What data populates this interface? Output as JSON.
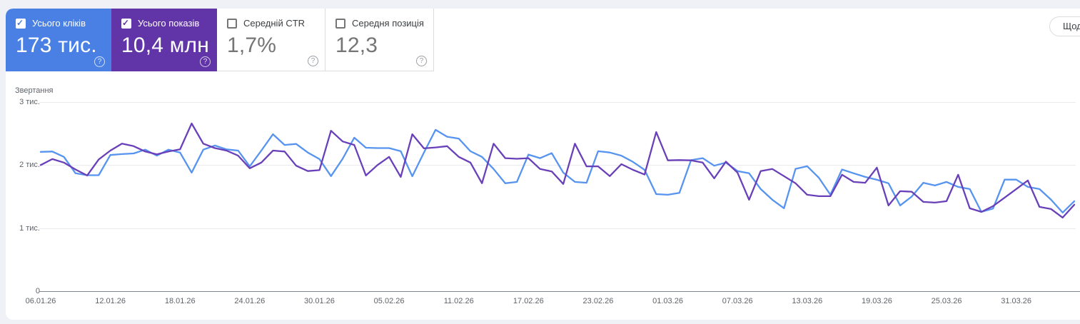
{
  "page": {
    "background": "#eff1f6",
    "panel_background": "#ffffff"
  },
  "toolbar": {
    "granularity_button_label": "Щод"
  },
  "metric_cards": [
    {
      "label": "Усього кліків",
      "value": "173 тис.",
      "checked": true,
      "bg": "#4a80e4",
      "fg": "#ffffff",
      "label_color": "#ffffff"
    },
    {
      "label": "Усього показів",
      "value": "10,4 млн",
      "checked": true,
      "bg": "#6134a8",
      "fg": "#ffffff",
      "label_color": "#ffffff"
    },
    {
      "label": "Середній CTR",
      "value": "1,7%",
      "checked": false,
      "bg": "#ffffff",
      "fg": "#757575",
      "label_color": "#3c4043"
    },
    {
      "label": "Середня позиція",
      "value": "12,3",
      "checked": false,
      "bg": "#ffffff",
      "fg": "#757575",
      "label_color": "#3c4043"
    }
  ],
  "chart_data": {
    "type": "line",
    "title": "",
    "ylabel": "Звертання",
    "xlabel": "",
    "ylim": [
      0,
      3000
    ],
    "grid": true,
    "y_ticks": [
      {
        "value": 3000,
        "label": "3 тис."
      },
      {
        "value": 2000,
        "label": "2 тис."
      },
      {
        "value": 1000,
        "label": "1 тис."
      },
      {
        "value": 0,
        "label": "0"
      }
    ],
    "x_ticks": [
      {
        "day": 0,
        "label": "06.01.26"
      },
      {
        "day": 6,
        "label": "12.01.26"
      },
      {
        "day": 12,
        "label": "18.01.26"
      },
      {
        "day": 18,
        "label": "24.01.26"
      },
      {
        "day": 24,
        "label": "30.01.26"
      },
      {
        "day": 30,
        "label": "05.02.26"
      },
      {
        "day": 36,
        "label": "11.02.26"
      },
      {
        "day": 42,
        "label": "17.02.26"
      },
      {
        "day": 48,
        "label": "23.02.26"
      },
      {
        "day": 54,
        "label": "01.03.26"
      },
      {
        "day": 60,
        "label": "07.03.26"
      },
      {
        "day": 66,
        "label": "13.03.26"
      },
      {
        "day": 72,
        "label": "19.03.26"
      },
      {
        "day": 78,
        "label": "25.03.26"
      },
      {
        "day": 84,
        "label": "31.03.26"
      }
    ],
    "series": [
      {
        "name": "Усього кліків",
        "color": "#5694f0",
        "values": [
          2210,
          2215,
          2130,
          1870,
          1840,
          1840,
          2160,
          2175,
          2185,
          2245,
          2150,
          2245,
          2200,
          1880,
          2245,
          2310,
          2250,
          2230,
          1980,
          2230,
          2490,
          2320,
          2335,
          2200,
          2095,
          1825,
          2100,
          2435,
          2275,
          2270,
          2270,
          2220,
          1823,
          2200,
          2560,
          2450,
          2420,
          2220,
          2130,
          1938,
          1712,
          1733,
          2167,
          2110,
          2190,
          1880,
          1733,
          1720,
          2220,
          2200,
          2150,
          2050,
          1925,
          1540,
          1530,
          1560,
          2078,
          2110,
          1990,
          2040,
          1905,
          1870,
          1620,
          1450,
          1315,
          1940,
          1982,
          1800,
          1530,
          1930,
          1870,
          1813,
          1767,
          1712,
          1360,
          1500,
          1720,
          1677,
          1733,
          1654,
          1620,
          1258,
          1310,
          1770,
          1770,
          1654,
          1620,
          1450,
          1246,
          1427
        ]
      },
      {
        "name": "Усього показів",
        "color": "#6940b9",
        "values": [
          2000,
          2095,
          2040,
          1930,
          1835,
          2090,
          2230,
          2340,
          2300,
          2215,
          2170,
          2215,
          2250,
          2660,
          2340,
          2270,
          2230,
          2150,
          1950,
          2040,
          2230,
          2215,
          1990,
          1905,
          1920,
          2545,
          2375,
          2320,
          1835,
          2000,
          2130,
          1813,
          2490,
          2265,
          2280,
          2300,
          2130,
          2040,
          1712,
          2340,
          2110,
          2100,
          2110,
          1938,
          1900,
          1700,
          2340,
          1980,
          1980,
          1825,
          2015,
          1925,
          1850,
          2525,
          2075,
          2080,
          2075,
          2040,
          1790,
          2055,
          1880,
          1450,
          1905,
          1938,
          1825,
          1712,
          1530,
          1507,
          1507,
          1847,
          1733,
          1720,
          1960,
          1360,
          1586,
          1578,
          1416,
          1405,
          1428,
          1847,
          1314,
          1258,
          1348,
          1484,
          1620,
          1756,
          1337,
          1303,
          1167,
          1371
        ]
      }
    ]
  }
}
